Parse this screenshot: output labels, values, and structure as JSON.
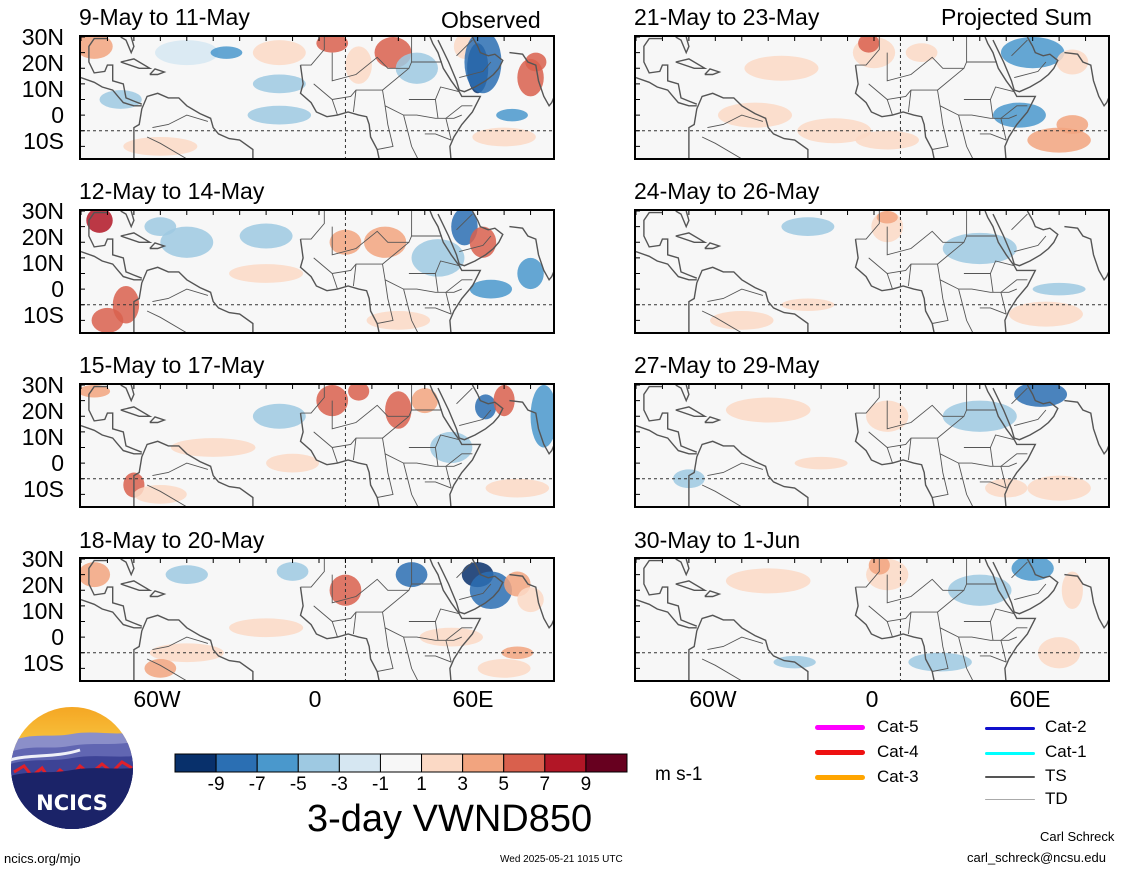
{
  "figure": {
    "title": "3-day VWND850",
    "units": "m s-1",
    "col_headers": {
      "left": "Observed",
      "right": "Projected Sum"
    },
    "lat_labels": [
      "30N",
      "20N",
      "10N",
      "0",
      "10S"
    ],
    "lon_labels": [
      "60W",
      "0",
      "60E"
    ],
    "colorbar": {
      "tick_labels": [
        "-9",
        "-7",
        "-5",
        "-3",
        "-1",
        "1",
        "3",
        "5",
        "7",
        "9"
      ],
      "colors": [
        "#08306b",
        "#2b6fb3",
        "#4a98cc",
        "#9ec9e2",
        "#d6e7f2",
        "#f7f7f7",
        "#fbd9c5",
        "#f2a47f",
        "#d9604d",
        "#b21626",
        "#67001f"
      ]
    },
    "panels": [
      {
        "id": "p1",
        "date": "9-May to 11-May"
      },
      {
        "id": "p2",
        "date": "21-May to 23-May"
      },
      {
        "id": "p3",
        "date": "12-May to 14-May"
      },
      {
        "id": "p4",
        "date": "24-May to 26-May"
      },
      {
        "id": "p5",
        "date": "15-May to 17-May"
      },
      {
        "id": "p6",
        "date": "27-May to 29-May"
      },
      {
        "id": "p7",
        "date": "18-May to 20-May"
      },
      {
        "id": "p8",
        "date": "30-May to 1-Jun"
      }
    ],
    "storm_legend": [
      {
        "label": "Cat-5",
        "color": "#ff00ff"
      },
      {
        "label": "Cat-4",
        "color": "#ee1111"
      },
      {
        "label": "Cat-3",
        "color": "#ffa500"
      },
      {
        "label": "Cat-2",
        "color": "#1010cc"
      },
      {
        "label": "Cat-1",
        "color": "#00ffff"
      },
      {
        "label": "TS",
        "color": "#555555"
      },
      {
        "label": "TD",
        "color": "#aaaaaa"
      }
    ]
  },
  "footer": {
    "left_url": "ncics.org/mjo",
    "timestamp": "Wed 2025-05-21 1015 UTC",
    "author": "Carl Schreck",
    "email": "carl_schreck@ncsu.edu",
    "logo_text": "NCICS"
  }
}
